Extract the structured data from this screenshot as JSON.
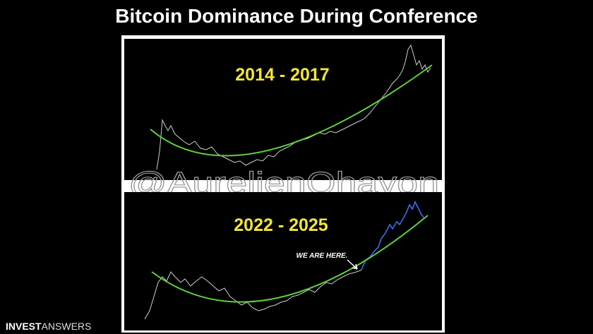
{
  "header": {
    "title": "Bitcoin Dominance During Conference"
  },
  "panels": [
    {
      "label": "2014 - 2017"
    },
    {
      "label": "2022 - 2025",
      "annotation": "WE ARE HERE."
    }
  ],
  "watermark": "@AurelienOhayon",
  "logo": {
    "bold": "INVEST",
    "light": "ANSWERS"
  }
}
